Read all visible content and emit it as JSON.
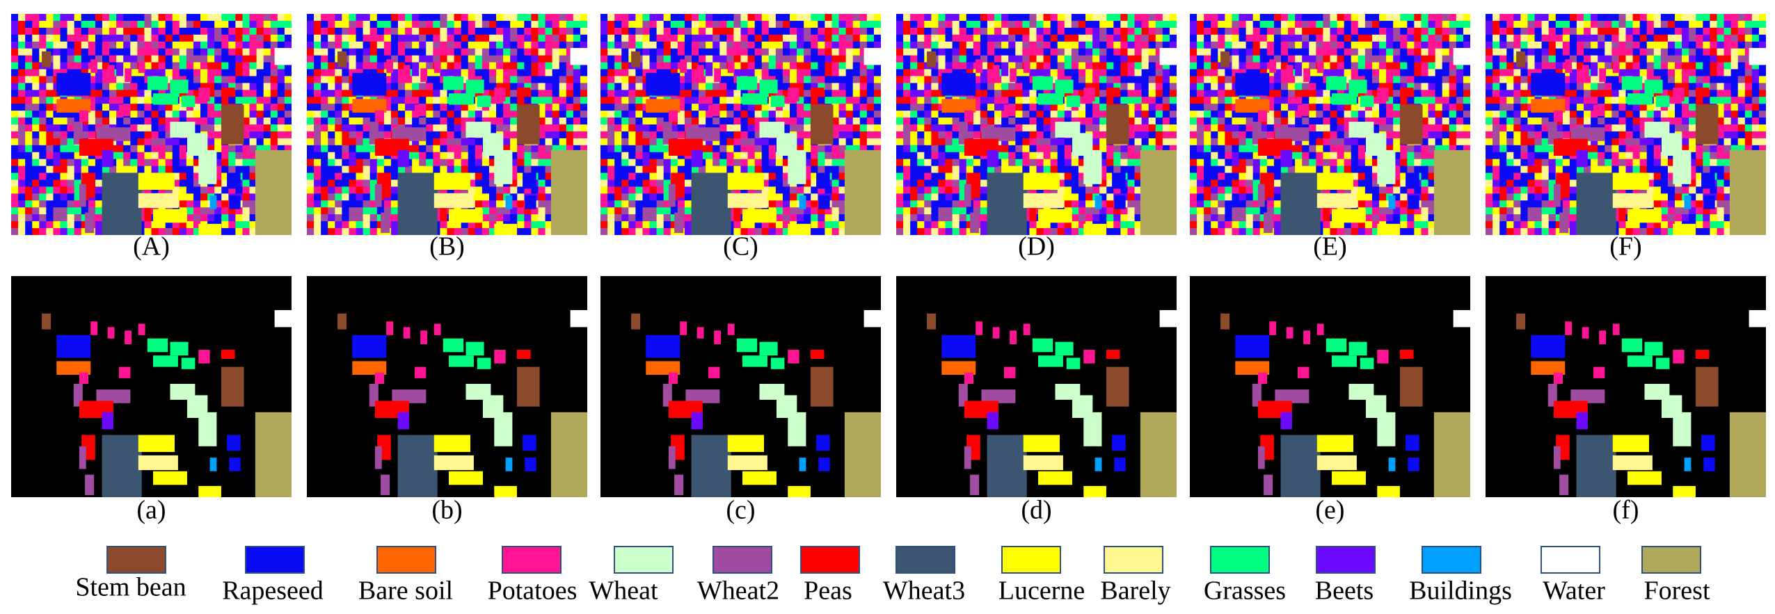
{
  "panels_top": [
    "(A)",
    "(B)",
    "(C)",
    "(D)",
    "(E)",
    "(F)"
  ],
  "panels_bottom": [
    "(a)",
    "(b)",
    "(c)",
    "(d)",
    "(e)",
    "(f)"
  ],
  "legend": [
    {
      "name": "Stem bean",
      "color": "#8b4a2b"
    },
    {
      "name": "Rapeseed",
      "color": "#0a0af5"
    },
    {
      "name": "Bare soil",
      "color": "#ff6600"
    },
    {
      "name": "Potatoes",
      "color": "#ff1493"
    },
    {
      "name": "Wheat",
      "color": "#ccffcc"
    },
    {
      "name": "Wheat2",
      "color": "#a04ca0"
    },
    {
      "name": "Peas",
      "color": "#ff0000"
    },
    {
      "name": "Wheat3",
      "color": "#3c5570"
    },
    {
      "name": "Lucerne",
      "color": "#ffff00"
    },
    {
      "name": "Barely",
      "color": "#fff68f"
    },
    {
      "name": "Grasses",
      "color": "#00ff80"
    },
    {
      "name": "Beets",
      "color": "#6a0aff"
    },
    {
      "name": "Buildings",
      "color": "#00a0ff"
    },
    {
      "name": "Water",
      "color": "#ffffff"
    },
    {
      "name": "Forest",
      "color": "#b0a85a"
    }
  ]
}
